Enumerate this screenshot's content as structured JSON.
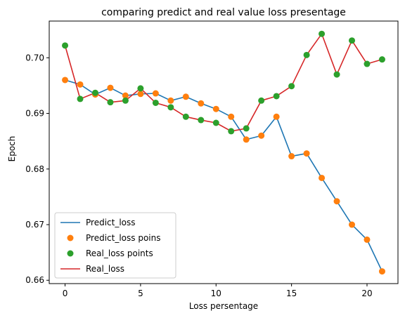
{
  "chart_data": {
    "type": "line",
    "title": "comparing predict and real value loss presentage",
    "xlabel": "Loss persentage",
    "ylabel": "Epoch",
    "xlim": [
      -1.05,
      22.05
    ],
    "ylim": [
      0.6594,
      0.7066
    ],
    "xticks": [
      0,
      5,
      10,
      15,
      20
    ],
    "xtick_labels": [
      "0",
      "5",
      "10",
      "15",
      "20"
    ],
    "yticks": [
      0.66,
      0.67,
      0.68,
      0.69,
      0.7
    ],
    "ytick_labels": [
      "0.66",
      "0.67",
      "0.68",
      "0.69",
      "0.70"
    ],
    "grid": false,
    "legend_position": "lower-left",
    "x": [
      0,
      1,
      2,
      3,
      4,
      5,
      6,
      7,
      8,
      9,
      10,
      11,
      12,
      13,
      14,
      15,
      16,
      17,
      18,
      19,
      20,
      21
    ],
    "series": [
      {
        "name": "Predict_loss",
        "kind": "line",
        "color": "#1f77b4",
        "values": [
          0.696,
          0.6952,
          0.6934,
          0.6946,
          0.6932,
          0.6935,
          0.6936,
          0.6923,
          0.693,
          0.6918,
          0.6908,
          0.6894,
          0.6853,
          0.686,
          0.6894,
          0.6823,
          0.6828,
          0.6784,
          0.6742,
          0.67,
          0.6673,
          0.6616
        ]
      },
      {
        "name": "Predict_loss poins",
        "kind": "points",
        "color": "#ff7f0e",
        "values": [
          0.696,
          0.6952,
          0.6934,
          0.6946,
          0.6932,
          0.6935,
          0.6936,
          0.6923,
          0.693,
          0.6918,
          0.6908,
          0.6894,
          0.6853,
          0.686,
          0.6894,
          0.6823,
          0.6828,
          0.6784,
          0.6742,
          0.67,
          0.6673,
          0.6616
        ]
      },
      {
        "name": "Real_loss points",
        "kind": "points",
        "color": "#2ca02c",
        "values": [
          0.7022,
          0.6926,
          0.6937,
          0.692,
          0.6923,
          0.6945,
          0.6919,
          0.6911,
          0.6894,
          0.6888,
          0.6883,
          0.6868,
          0.6873,
          0.6923,
          0.6931,
          0.6949,
          0.7005,
          0.7043,
          0.697,
          0.7031,
          0.6989,
          0.6997
        ]
      },
      {
        "name": "Real_loss",
        "kind": "line",
        "color": "#d62728",
        "values": [
          0.7022,
          0.6926,
          0.6937,
          0.692,
          0.6923,
          0.6945,
          0.6919,
          0.6911,
          0.6894,
          0.6888,
          0.6883,
          0.6868,
          0.6873,
          0.6923,
          0.6931,
          0.6949,
          0.7005,
          0.7043,
          0.697,
          0.7031,
          0.6989,
          0.6997
        ]
      }
    ]
  }
}
